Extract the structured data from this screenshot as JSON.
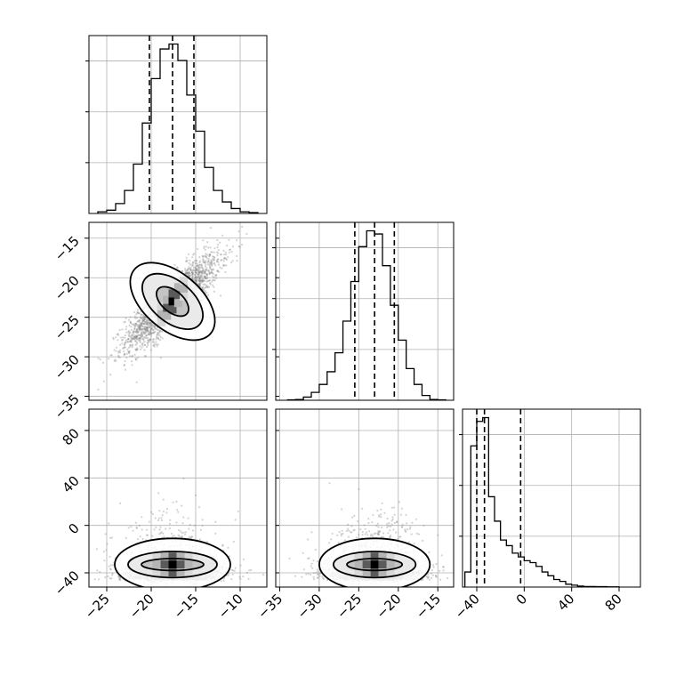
{
  "chart_data": {
    "type": "corner",
    "grid": true,
    "colors": {
      "line": "#000000",
      "grid": "#b0b0b0",
      "points": "#808080"
    },
    "parameters": [
      {
        "axis_range": [
          -27,
          -7
        ],
        "ticks": [
          -25,
          -20,
          -15,
          -10
        ],
        "tick_labels": [
          "−25",
          "−20",
          "−15",
          "−10"
        ],
        "quantiles": [
          -20.2,
          -17.6,
          -15.2
        ]
      },
      {
        "axis_range": [
          -35.5,
          -13
        ],
        "ticks": [
          -35,
          -30,
          -25,
          -20,
          -15
        ],
        "tick_labels": [
          "−35",
          "−30",
          "−25",
          "−20",
          "−15"
        ],
        "quantiles": [
          -25.5,
          -23,
          -20.5
        ]
      },
      {
        "axis_range": [
          -52,
          98
        ],
        "ticks": [
          -40,
          0,
          40,
          80
        ],
        "tick_labels": [
          "−40",
          "0",
          "40",
          "80"
        ],
        "quantiles": [
          -40,
          -33.5,
          -3
        ]
      }
    ],
    "histograms": [
      {
        "param": 0,
        "bin_edges": [
          -26,
          -25,
          -24,
          -23,
          -22,
          -21,
          -20,
          -19,
          -18,
          -17,
          -16,
          -15,
          -14,
          -13,
          -12,
          -11,
          -10,
          -9,
          -8
        ],
        "counts": [
          1,
          2,
          6,
          14,
          30,
          55,
          82,
          100,
          103,
          93,
          72,
          50,
          28,
          14,
          7,
          3,
          1,
          0.5
        ]
      },
      {
        "param": 1,
        "bin_edges": [
          -34,
          -33,
          -32,
          -31,
          -30,
          -29,
          -28,
          -27,
          -26,
          -25,
          -24,
          -23,
          -22,
          -21,
          -20,
          -19,
          -18,
          -17,
          -16,
          -15,
          -14
        ],
        "counts": [
          0.3,
          0.5,
          2,
          5,
          10,
          18,
          30,
          50,
          75,
          97,
          107,
          105,
          85,
          60,
          38,
          20,
          10,
          3,
          0.5,
          0.3
        ]
      },
      {
        "param": 2,
        "bin_edges": [
          -50,
          -45,
          -40,
          -35,
          -30,
          -25,
          -20,
          -15,
          -10,
          -5,
          0,
          5,
          10,
          15,
          20,
          25,
          30,
          35,
          40,
          45,
          50,
          60,
          70,
          80
        ],
        "counts": [
          8,
          75,
          88,
          90,
          48,
          35,
          25,
          22,
          18,
          16,
          14,
          13,
          11,
          8,
          6,
          4,
          3,
          1.5,
          1,
          0.5,
          0.3,
          0.2,
          0.1
        ]
      }
    ],
    "pairs": [
      {
        "x_param": 0,
        "y_param": 1,
        "center": [
          -17.6,
          -23
        ],
        "spread": [
          2.6,
          2.9
        ],
        "correlation": 0.85,
        "n_points": 2400,
        "contours": [
          {
            "rx": 1.2,
            "ry": 2.4
          },
          {
            "rx": 2.3,
            "ry": 4.5
          },
          {
            "rx": 3.2,
            "ry": 6.3
          }
        ]
      },
      {
        "x_param": 0,
        "y_param": 2,
        "center": [
          -17.6,
          -33
        ],
        "spread": [
          2.7,
          20
        ],
        "correlation": 0.0,
        "n_points": 2400,
        "contours": [
          {
            "rx": 3.5,
            "ry": 5
          },
          {
            "rx": 5,
            "ry": 11
          },
          {
            "rx": 6.5,
            "ry": 22
          }
        ]
      },
      {
        "x_param": 1,
        "y_param": 2,
        "center": [
          -23,
          -33
        ],
        "spread": [
          2.9,
          20
        ],
        "correlation": 0.0,
        "n_points": 2400,
        "contours": [
          {
            "rx": 3.5,
            "ry": 5
          },
          {
            "rx": 5.2,
            "ry": 11
          },
          {
            "rx": 7,
            "ry": 22
          }
        ]
      }
    ]
  }
}
